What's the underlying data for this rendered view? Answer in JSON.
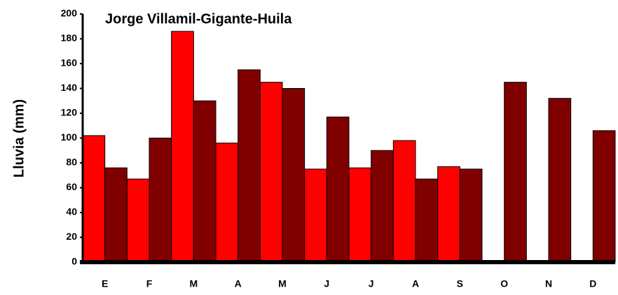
{
  "chart_data": {
    "type": "bar",
    "title": "Jorge Villamil-Gigante-Huila",
    "y_label": "Lluvia (mm)",
    "categories": [
      "E",
      "F",
      "M",
      "A",
      "M",
      "J",
      "J",
      "A",
      "S",
      "O",
      "N",
      "D"
    ],
    "series": [
      {
        "color": "#ff0000",
        "values": [
          102,
          67,
          186,
          96,
          145,
          75,
          76,
          98,
          77,
          null,
          null,
          null
        ]
      },
      {
        "color": "#800000",
        "values": [
          76,
          100,
          130,
          155,
          140,
          117,
          90,
          67,
          75,
          145,
          132,
          106
        ]
      }
    ],
    "ylim": [
      0,
      200
    ],
    "yticks": [
      0,
      20,
      40,
      60,
      80,
      100,
      120,
      140,
      160,
      180,
      200
    ]
  }
}
